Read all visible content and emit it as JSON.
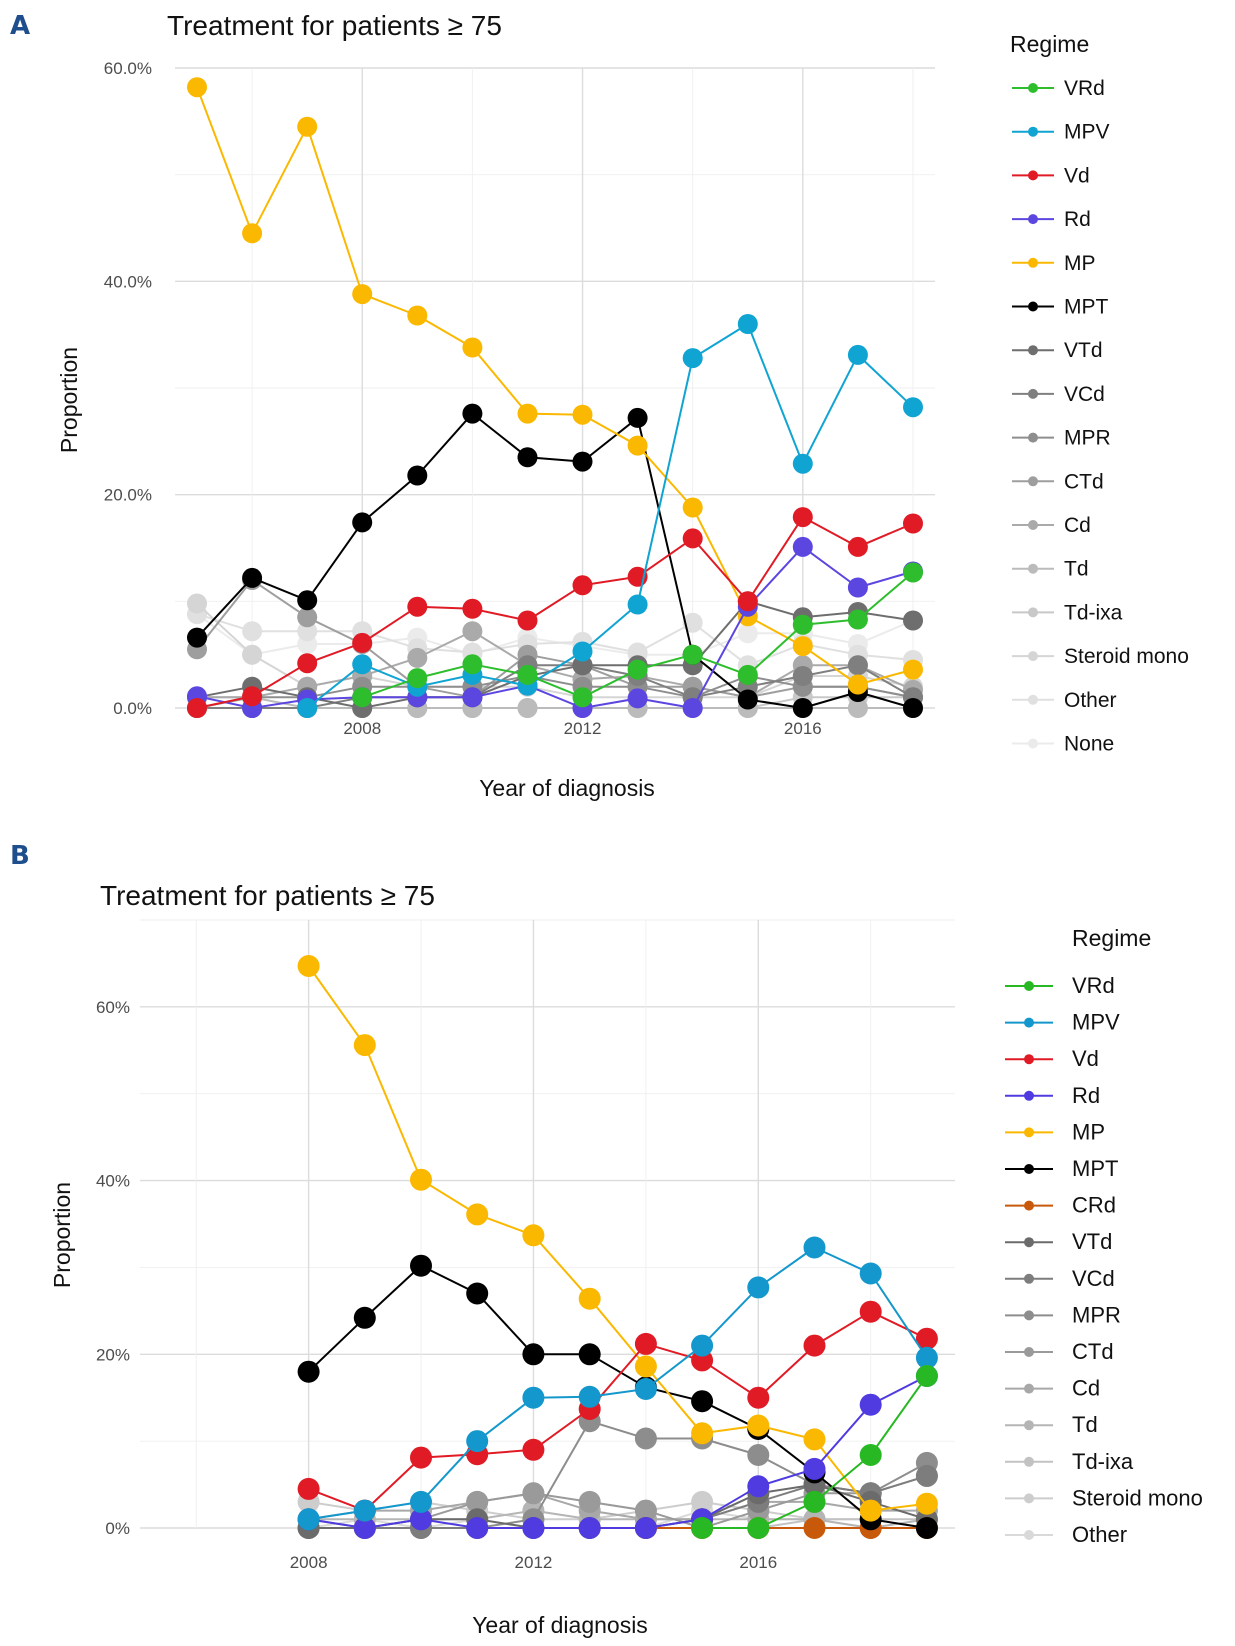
{
  "panels": [
    {
      "label": "A",
      "title": "Treatment for patients ≥ 75",
      "chart_data": {
        "type": "line",
        "title": "Treatment for patients ≥ 75",
        "xlabel": "Year of diagnosis",
        "ylabel": "Proportion",
        "xlim": [
          2005,
          2018
        ],
        "ylim": [
          0,
          0.6
        ],
        "x_ticks": [
          2008,
          2012,
          2016
        ],
        "x_tick_labels": [
          "2008",
          "2012",
          "2016"
        ],
        "y_ticks": [
          0,
          0.2,
          0.4,
          0.6
        ],
        "y_tick_labels": [
          "0.0%",
          "20.0%",
          "40.0%",
          "60.0%"
        ],
        "legend_title": "Regime",
        "x": [
          2005,
          2006,
          2007,
          2008,
          2009,
          2010,
          2011,
          2012,
          2013,
          2014,
          2015,
          2016,
          2017,
          2018
        ],
        "series": [
          {
            "name": "None",
            "color": "#ebebeb",
            "values": [
              0.088,
              0.05,
              0.06,
              0.06,
              0.066,
              0.05,
              0.066,
              0.058,
              0.05,
              0.05,
              0.07,
              0.07,
              0.06,
              0.082
            ]
          },
          {
            "name": "Other",
            "color": "#e0e0e0",
            "values": [
              0.088,
              0.072,
              0.072,
              0.072,
              0.056,
              0.052,
              0.06,
              0.062,
              0.052,
              0.08,
              0.04,
              0.06,
              0.05,
              0.045
            ]
          },
          {
            "name": "Steroid mono",
            "color": "#d5d5d5",
            "values": [
              0.098,
              0.05,
              0.02,
              0.03,
              0.02,
              0.02,
              0.02,
              0.01,
              0.01,
              0.01,
              0.01,
              0.03,
              0.03,
              0.02
            ]
          },
          {
            "name": "Td-ixa",
            "color": "#c8c8c8",
            "values": [
              0.0,
              0.0,
              0.0,
              0.0,
              0.0,
              0.0,
              0.0,
              0.0,
              0.0,
              0.0,
              0.0,
              0.01,
              0.01,
              0.01
            ]
          },
          {
            "name": "Td",
            "color": "#bbbbbb",
            "values": [
              0.01,
              0.01,
              0.0,
              0.0,
              0.0,
              0.0,
              0.0,
              0.0,
              0.0,
              0.0,
              0.0,
              0.0,
              0.0,
              0.0
            ]
          },
          {
            "name": "Cd",
            "color": "#aaaaaa",
            "values": [
              0.01,
              0.01,
              0.02,
              0.03,
              0.047,
              0.072,
              0.04,
              0.027,
              0.03,
              0.02,
              0.01,
              0.04,
              0.04,
              0.017
            ]
          },
          {
            "name": "CTd",
            "color": "#9e9e9e",
            "values": [
              0.055,
              0.12,
              0.085,
              0.06,
              0.02,
              0.01,
              0.05,
              0.04,
              0.02,
              0.02,
              0.01,
              0.02,
              0.02,
              0.01
            ]
          },
          {
            "name": "MPR",
            "color": "#8e8e8e",
            "values": [
              0.0,
              0.01,
              0.01,
              0.02,
              0.02,
              0.02,
              0.03,
              0.02,
              0.02,
              0.01,
              0.03,
              0.02,
              0.02,
              0.01
            ]
          },
          {
            "name": "VCd",
            "color": "#7f7f7f",
            "values": [
              0.0,
              0.0,
              0.0,
              0.01,
              0.01,
              0.01,
              0.04,
              0.04,
              0.03,
              0.01,
              0.02,
              0.03,
              0.04,
              0.01
            ]
          },
          {
            "name": "VTd",
            "color": "#6e6e6e",
            "values": [
              0.01,
              0.02,
              0.01,
              0.0,
              0.01,
              0.01,
              0.03,
              0.04,
              0.04,
              0.04,
              0.1,
              0.085,
              0.09,
              0.082
            ]
          },
          {
            "name": "MPT",
            "color": "#000000",
            "values": [
              0.066,
              0.122,
              0.101,
              0.174,
              0.218,
              0.276,
              0.235,
              0.231,
              0.272,
              0.05,
              0.008,
              0.0,
              0.015,
              0.0
            ]
          },
          {
            "name": "MP",
            "color": "#fbb800",
            "values": [
              0.582,
              0.445,
              0.545,
              0.388,
              0.368,
              0.338,
              0.276,
              0.275,
              0.246,
              0.188,
              0.086,
              0.058,
              0.022,
              0.036
            ]
          },
          {
            "name": "Rd",
            "color": "#5b46e0",
            "values": [
              0.011,
              0.0,
              0.008,
              0.01,
              0.01,
              0.01,
              0.021,
              0.0,
              0.009,
              0.0,
              0.095,
              0.151,
              0.113,
              0.128
            ]
          },
          {
            "name": "Vd",
            "color": "#e01b25",
            "values": [
              0.0,
              0.011,
              0.042,
              0.061,
              0.095,
              0.093,
              0.082,
              0.115,
              0.123,
              0.159,
              0.1,
              0.179,
              0.151,
              0.173
            ]
          },
          {
            "name": "MPV",
            "color": "#10a4d2",
            "values": [
              null,
              null,
              0.0,
              0.041,
              0.02,
              0.031,
              0.021,
              0.053,
              0.097,
              0.328,
              0.36,
              0.229,
              0.331,
              0.282
            ]
          },
          {
            "name": "VRd",
            "color": "#2ebe2d",
            "values": [
              null,
              null,
              null,
              0.01,
              0.028,
              0.041,
              0.031,
              0.01,
              0.036,
              0.05,
              0.031,
              0.078,
              0.083,
              0.127
            ]
          }
        ]
      },
      "legend": [
        "VRd",
        "MPV",
        "Vd",
        "Rd",
        "MP",
        "MPT",
        "VTd",
        "VCd",
        "MPR",
        "CTd",
        "Cd",
        "Td",
        "Td-ixa",
        "Steroid mono",
        "Other",
        "None"
      ]
    },
    {
      "label": "B",
      "title": "Treatment for patients ≥ 75",
      "chart_data": {
        "type": "line",
        "title": "Treatment for patients ≥ 75",
        "xlabel": "Year of diagnosis",
        "ylabel": "Proportion",
        "xlim": [
          2005,
          2019
        ],
        "ylim": [
          0,
          0.7
        ],
        "x_ticks": [
          2008,
          2012,
          2016
        ],
        "x_tick_labels": [
          "2008",
          "2012",
          "2016"
        ],
        "y_ticks": [
          0,
          0.2,
          0.4,
          0.6
        ],
        "y_tick_labels": [
          "0%",
          "20%",
          "40%",
          "60%"
        ],
        "legend_title": "Regime",
        "x": [
          2008,
          2009,
          2010,
          2011,
          2012,
          2013,
          2014,
          2015,
          2016,
          2017,
          2018,
          2019
        ],
        "series": [
          {
            "name": "Other",
            "color": "#d9d9d9",
            "values": [
              0.0,
              0.01,
              0.0,
              0.01,
              0.0,
              0.0,
              0.0,
              0.02,
              0.01,
              0.01,
              0.0,
              0.0
            ]
          },
          {
            "name": "Steroid mono",
            "color": "#cdcdcd",
            "values": [
              0.03,
              0.02,
              0.03,
              0.02,
              0.01,
              0.01,
              0.02,
              0.03,
              0.02,
              0.01,
              0.01,
              0.0
            ]
          },
          {
            "name": "Td-ixa",
            "color": "#c2c2c2",
            "values": [
              0.0,
              0.0,
              0.0,
              0.0,
              0.0,
              0.0,
              0.0,
              0.0,
              0.0,
              0.01,
              0.01,
              0.01
            ]
          },
          {
            "name": "Td",
            "color": "#b5b5b5",
            "values": [
              0.01,
              0.01,
              0.01,
              0.01,
              0.02,
              0.01,
              0.01,
              0.01,
              0.01,
              0.01,
              0.0,
              0.01
            ]
          },
          {
            "name": "Cd",
            "color": "#a8a8a8",
            "values": [
              0.01,
              0.02,
              0.02,
              0.03,
              0.04,
              0.02,
              0.01,
              0.01,
              0.03,
              0.03,
              0.02,
              0.02
            ]
          },
          {
            "name": "CTd",
            "color": "#9a9a9a",
            "values": [
              0.01,
              0.0,
              0.01,
              0.03,
              0.04,
              0.03,
              0.02,
              0.0,
              0.02,
              0.04,
              0.04,
              0.06
            ]
          },
          {
            "name": "MPR",
            "color": "#8d8d8d",
            "values": [
              0.0,
              0.0,
              0.0,
              0.0,
              0.01,
              0.123,
              0.103,
              0.103,
              0.084,
              0.05,
              0.04,
              0.075
            ]
          },
          {
            "name": "VCd",
            "color": "#7d7d7d",
            "values": [
              0.0,
              0.0,
              0.0,
              0.0,
              0.0,
              0.0,
              0.0,
              0.01,
              0.03,
              0.05,
              0.04,
              0.06
            ]
          },
          {
            "name": "VTd",
            "color": "#6b6b6b",
            "values": [
              0.0,
              0.0,
              0.01,
              0.01,
              0.0,
              0.0,
              0.0,
              0.01,
              0.04,
              0.05,
              0.03,
              0.01
            ]
          },
          {
            "name": "CRd",
            "color": "#c8590b",
            "values": [
              null,
              null,
              null,
              null,
              null,
              null,
              0.0,
              0.0,
              0.0,
              0.0,
              0.0,
              0.0
            ]
          },
          {
            "name": "MPT",
            "color": "#000000",
            "values": [
              0.18,
              0.242,
              0.302,
              0.27,
              0.2,
              0.2,
              0.162,
              0.146,
              0.114,
              0.064,
              0.01,
              0.0
            ]
          },
          {
            "name": "MP",
            "color": "#fbb800",
            "values": [
              0.647,
              0.556,
              0.401,
              0.361,
              0.337,
              0.264,
              0.186,
              0.109,
              0.118,
              0.102,
              0.02,
              0.028
            ]
          },
          {
            "name": "Rd",
            "color": "#4f3be0",
            "values": [
              0.01,
              0.0,
              0.01,
              0.0,
              0.0,
              0.0,
              0.0,
              0.01,
              0.048,
              0.068,
              0.142,
              0.175
            ]
          },
          {
            "name": "Vd",
            "color": "#e01b25",
            "values": [
              0.045,
              0.02,
              0.081,
              0.085,
              0.09,
              0.137,
              0.212,
              0.193,
              0.15,
              0.21,
              0.249,
              0.218
            ]
          },
          {
            "name": "MPV",
            "color": "#1497cc",
            "values": [
              0.01,
              0.02,
              0.03,
              0.1,
              0.15,
              0.151,
              0.16,
              0.21,
              0.277,
              0.323,
              0.293,
              0.196
            ]
          },
          {
            "name": "VRd",
            "color": "#27b823",
            "values": [
              null,
              null,
              null,
              null,
              null,
              null,
              null,
              0.0,
              0.0,
              0.03,
              0.084,
              0.175
            ]
          }
        ]
      },
      "legend": [
        "VRd",
        "MPV",
        "Vd",
        "Rd",
        "MP",
        "MPT",
        "CRd",
        "VTd",
        "VCd",
        "MPR",
        "CTd",
        "Cd",
        "Td",
        "Td-ixa",
        "Steroid mono",
        "Other"
      ]
    }
  ]
}
